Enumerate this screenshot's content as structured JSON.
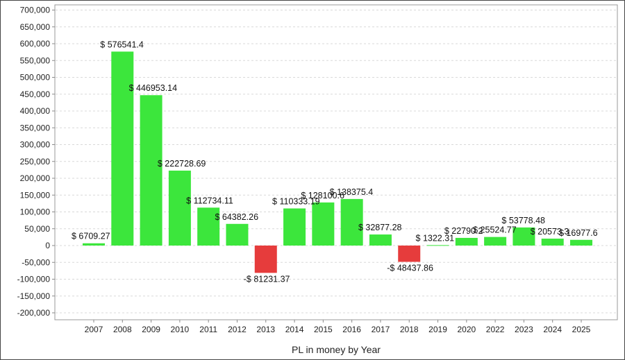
{
  "chart_data": {
    "type": "bar",
    "title": "",
    "xlabel": "PL in money by Year",
    "ylabel": "",
    "ylim": [
      -220000,
      710000
    ],
    "yticks": [
      700000,
      650000,
      600000,
      550000,
      500000,
      450000,
      400000,
      350000,
      300000,
      250000,
      200000,
      150000,
      100000,
      50000,
      0,
      -50000,
      -100000,
      -150000,
      -200000
    ],
    "ytick_labels": [
      "700,000",
      "650,000",
      "600,000",
      "550,000",
      "500,000",
      "450,000",
      "400,000",
      "350,000",
      "300,000",
      "250,000",
      "200,000",
      "150,000",
      "100,000",
      "50,000",
      "0",
      "-50,000",
      "-100,000",
      "-150,000",
      "-200,000"
    ],
    "categories": [
      "2007",
      "2008",
      "2009",
      "2010",
      "2011",
      "2012",
      "2013",
      "2014",
      "2015",
      "2016",
      "2017",
      "2018",
      "2019",
      "2020",
      "2022",
      "2023",
      "2024",
      "2025"
    ],
    "values": [
      6709.27,
      576541.4,
      446953.14,
      222728.69,
      112734.11,
      64382.26,
      -81231.37,
      110333.19,
      128100.6,
      138375.4,
      32877.28,
      -48437.86,
      1322.31,
      22790.2,
      25524.77,
      53778.48,
      20573.3,
      16977.6
    ],
    "data_labels": [
      "$ 6709.27",
      "$ 576541.4",
      "$ 446953.14",
      "$ 222728.69",
      "$ 112734.11",
      "$ 64382.26",
      "-$ 81231.37",
      "$ 110333.19",
      "$ 128100.6",
      "$ 138375.4",
      "$ 32877.28",
      "-$ 48437.86",
      "$ 1322.31",
      "$ 22790.2",
      "$ 25524.77",
      "$ 53778.48",
      "$ 20573.3",
      "$ 16977.6"
    ],
    "grid": true,
    "colors": {
      "positive": "#3ce63c",
      "negative": "#e63c3c",
      "grid": "#d8d8d8"
    }
  }
}
